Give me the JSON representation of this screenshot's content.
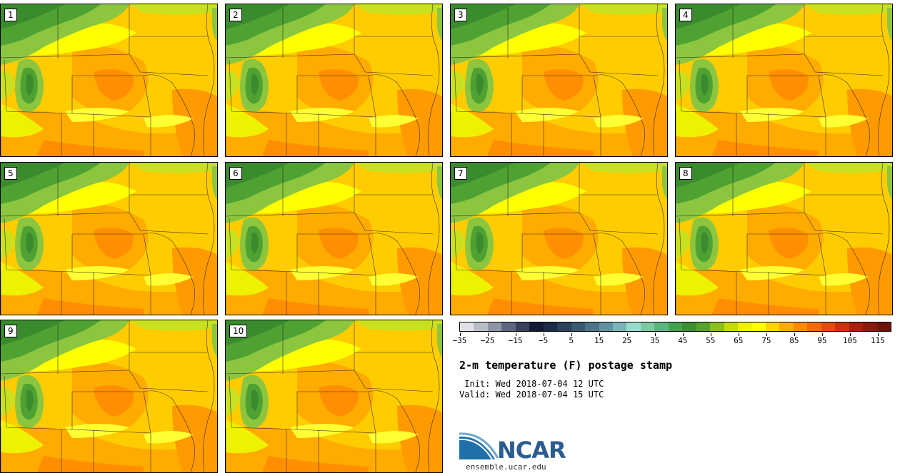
{
  "panels": [
    {
      "id": "1"
    },
    {
      "id": "2"
    },
    {
      "id": "3"
    },
    {
      "id": "4"
    },
    {
      "id": "5"
    },
    {
      "id": "6"
    },
    {
      "id": "7"
    },
    {
      "id": "8"
    },
    {
      "id": "9"
    },
    {
      "id": "10"
    }
  ],
  "colorbar": {
    "colors": [
      "#dfe1e6",
      "#b9bdc8",
      "#8f95a5",
      "#5f6780",
      "#39405a",
      "#121b33",
      "#1c2a45",
      "#2b4158",
      "#3b5a70",
      "#4e7488",
      "#62919f",
      "#7bb4b7",
      "#98dccd",
      "#7cc9a0",
      "#5cb57d",
      "#44a24f",
      "#3f8f32",
      "#5aa32a",
      "#8cbf20",
      "#c4d90f",
      "#eef200",
      "#ffff00",
      "#ffd200",
      "#ffaa00",
      "#ff8a00",
      "#f56a0a",
      "#e24d0d",
      "#c9330f",
      "#a82010",
      "#8a1a0e",
      "#6e1509"
    ],
    "ticks": [
      "−35",
      "−25",
      "−15",
      "−5",
      "5",
      "15",
      "25",
      "35",
      "45",
      "55",
      "65",
      "75",
      "85",
      "95",
      "105",
      "115"
    ]
  },
  "title": "2-m temperature (F) postage stamp",
  "init": " Init: Wed 2018-07-04 12 UTC",
  "valid": "Valid: Wed 2018-07-04 15 UTC",
  "logo_text": "NCAR",
  "url": "ensemble.ucar.edu"
}
